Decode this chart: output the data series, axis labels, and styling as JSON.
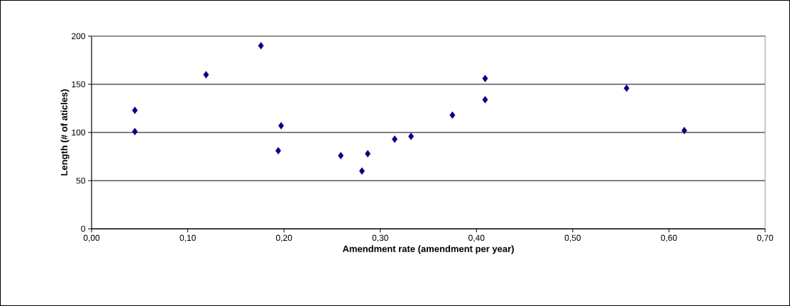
{
  "chart_data": {
    "type": "scatter",
    "xlabel": "Amendment rate (amendment per year)",
    "ylabel": "Length (# of aticles)",
    "x": [
      0.045,
      0.045,
      0.119,
      0.176,
      0.197,
      0.194,
      0.259,
      0.281,
      0.287,
      0.315,
      0.332,
      0.375,
      0.409,
      0.409,
      0.556,
      0.616
    ],
    "values": [
      123,
      101,
      160,
      190,
      107,
      81,
      76,
      60,
      78,
      93,
      96,
      118,
      156,
      134,
      146,
      102
    ],
    "color": "#000080",
    "marker": "diamond",
    "grid": "y",
    "xlim": [
      0,
      0.7
    ],
    "ylim": [
      0,
      200
    ],
    "xticks": [
      {
        "value": 0,
        "label": "0,00"
      },
      {
        "value": 0.1,
        "label": "0,10"
      },
      {
        "value": 0.2,
        "label": "0,20"
      },
      {
        "value": 0.3,
        "label": "0,30"
      },
      {
        "value": 0.4,
        "label": "0,40"
      },
      {
        "value": 0.5,
        "label": "0,50"
      },
      {
        "value": 0.6,
        "label": "0,60"
      },
      {
        "value": 0.7,
        "label": "0,70"
      }
    ],
    "yticks": [
      0,
      50,
      100,
      150,
      200
    ]
  }
}
